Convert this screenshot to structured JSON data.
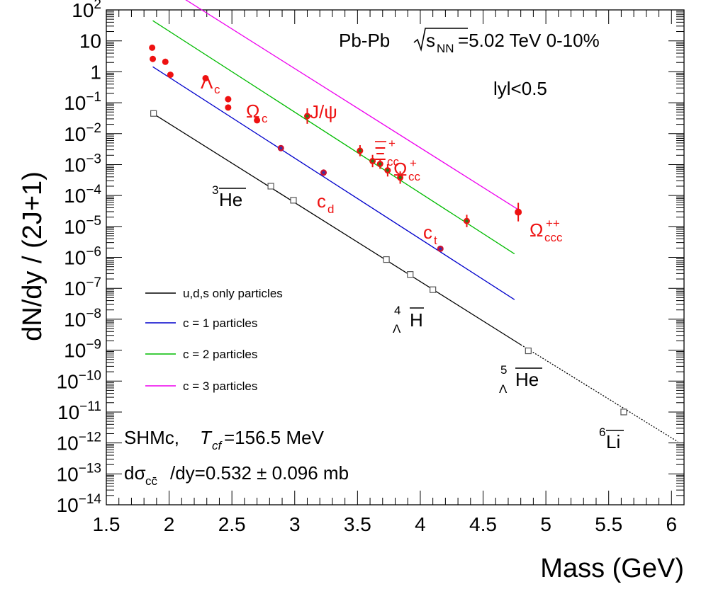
{
  "chart_data": {
    "type": "scatter",
    "xlabel": "Mass (GeV)",
    "ylabel": "dN/dy / (2J+1)",
    "xlim": [
      1.5,
      6.1
    ],
    "ylim_log10": [
      -14,
      2
    ],
    "y_scale": "log",
    "x_ticks": [
      {
        "v": 1.5,
        "t": "1.5"
      },
      {
        "v": 2,
        "t": "2"
      },
      {
        "v": 2.5,
        "t": "2.5"
      },
      {
        "v": 3,
        "t": "3"
      },
      {
        "v": 3.5,
        "t": "3.5"
      },
      {
        "v": 4,
        "t": "4"
      },
      {
        "v": 4.5,
        "t": "4.5"
      },
      {
        "v": 5,
        "t": "5"
      },
      {
        "v": 5.5,
        "t": "5.5"
      },
      {
        "v": 6,
        "t": "6"
      }
    ],
    "y_ticks": [
      {
        "e": 2,
        "t": "10",
        "sup": "2"
      },
      {
        "e": 1,
        "t": "10",
        "sup": ""
      },
      {
        "e": 0,
        "t": "1",
        "sup": ""
      },
      {
        "e": -1,
        "t": "10",
        "sup": "−1"
      },
      {
        "e": -2,
        "t": "10",
        "sup": "−2"
      },
      {
        "e": -3,
        "t": "10",
        "sup": "−3"
      },
      {
        "e": -4,
        "t": "10",
        "sup": "−4"
      },
      {
        "e": -5,
        "t": "10",
        "sup": "−5"
      },
      {
        "e": -6,
        "t": "10",
        "sup": "−6"
      },
      {
        "e": -7,
        "t": "10",
        "sup": "−7"
      },
      {
        "e": -8,
        "t": "10",
        "sup": "−8"
      },
      {
        "e": -9,
        "t": "10",
        "sup": "−9"
      },
      {
        "e": -10,
        "t": "10",
        "sup": "−10"
      },
      {
        "e": -11,
        "t": "10",
        "sup": "−11"
      },
      {
        "e": -12,
        "t": "10",
        "sup": "−12"
      },
      {
        "e": -13,
        "t": "10",
        "sup": "−13"
      },
      {
        "e": -14,
        "t": "10",
        "sup": "−14"
      }
    ],
    "lines": [
      {
        "name": "u,d,s only particles",
        "color": "#000000",
        "x": [
          1.87,
          4.8
        ],
        "y": [
          0.045,
          1.5e-09
        ]
      },
      {
        "name": "u,d,s only particles",
        "color": "#000000",
        "dashed": true,
        "x": [
          4.8,
          6.05
        ],
        "y": [
          1.5e-09,
          1.1e-12
        ]
      },
      {
        "name": "c = 1 particles",
        "color": "#0000cc",
        "x": [
          1.87,
          4.75
        ],
        "y": [
          1.45,
          4.3e-08
        ]
      },
      {
        "name": "c = 2 particles",
        "color": "#00bb00",
        "x": [
          1.87,
          4.75
        ],
        "y": [
          45,
          1.3e-06
        ]
      },
      {
        "name": "c = 3 particles",
        "color": "#ee00ee",
        "x": [
          1.87,
          4.78
        ],
        "y": [
          1000,
          3.5e-05
        ]
      }
    ],
    "red_points": [
      {
        "x": 1.865,
        "y": 6.0
      },
      {
        "x": 1.87,
        "y": 2.6
      },
      {
        "x": 1.97,
        "y": 2.1
      },
      {
        "x": 2.01,
        "y": 0.8
      },
      {
        "x": 2.29,
        "y": 0.62
      },
      {
        "x": 2.47,
        "y": 0.13
      },
      {
        "x": 2.47,
        "y": 0.07
      },
      {
        "x": 2.7,
        "y": 0.027
      }
    ],
    "green_points": [
      {
        "x": 3.1,
        "y": 0.037,
        "e": 0.25
      },
      {
        "x": 3.52,
        "y": 0.0028,
        "e": 0.18
      },
      {
        "x": 3.62,
        "y": 0.0013,
        "e": 0.2
      },
      {
        "x": 3.68,
        "y": 0.00105,
        "e": 0.16
      },
      {
        "x": 3.74,
        "y": 0.00065,
        "e": 0.2
      },
      {
        "x": 3.84,
        "y": 0.00038,
        "e": 0.2
      },
      {
        "x": 4.37,
        "y": 1.5e-05,
        "e": 0.2
      }
    ],
    "magenta_points": [
      {
        "x": 4.78,
        "y": 2.9e-05,
        "e": 0.3
      }
    ],
    "blue_points": [
      {
        "x": 2.89,
        "y": 0.0034
      },
      {
        "x": 3.23,
        "y": 0.00055
      },
      {
        "x": 4.16,
        "y": 1.9e-06
      }
    ],
    "nuclei_points": [
      {
        "x": 1.876,
        "y": 0.045
      },
      {
        "x": 2.81,
        "y": 0.0002
      },
      {
        "x": 2.99,
        "y": 7e-05
      },
      {
        "x": 3.73,
        "y": 8.5e-07
      },
      {
        "x": 3.92,
        "y": 2.8e-07
      },
      {
        "x": 4.1,
        "y": 9e-08
      },
      {
        "x": 4.86,
        "y": 9.5e-10
      },
      {
        "x": 5.62,
        "y": 1e-11
      }
    ],
    "legend": [
      {
        "label": "u,d,s only particles",
        "color": "#000000"
      },
      {
        "label": "c = 1 particles",
        "color": "#0000cc"
      },
      {
        "label": "c = 2 particles",
        "color": "#00bb00"
      },
      {
        "label": "c = 3 particles",
        "color": "#ee00ee"
      }
    ],
    "annotations": {
      "system": "Pb-Pb",
      "energy": "=5.02 TeV 0-10%",
      "sqrt_s": "s",
      "sqrt_s_sub": "NN",
      "rapidity": "lyl<0.5",
      "model": "SHMc,",
      "tcf_symbol": "T",
      "tcf_sub": "cf",
      "tcf_value": "=156.5 MeV",
      "xsec_prefix": "dσ",
      "xsec_sub": "cc̄",
      "xsec_value": "/dy=0.532 ± 0.096 mb",
      "Lambda_c": "Λ",
      "Lambda_c_sub": "c",
      "Omega_c": "Ω",
      "Omega_c_sub": "c",
      "Jpsi": "J/ψ",
      "Xi_cc": "Ξ",
      "Xi_cc_sub": "cc",
      "Xi_cc_sup": "+",
      "Omega_cc": "Ω",
      "Omega_cc_sub": "cc",
      "Omega_cc_sup": "+",
      "Omega_ccc": "Ω",
      "Omega_ccc_sub": "ccc",
      "Omega_ccc_sup": "++",
      "c_d": "c",
      "c_d_sub": "d",
      "c_t": "c",
      "c_t_sub": "t",
      "He3_sup": "3",
      "He3": "He",
      "H4L_sup": "4",
      "H4L_sub": "Λ",
      "H4L": "H",
      "He5L_sup": "5",
      "He5L_sub": "Λ",
      "He5L": "He",
      "Li6_sup": "6",
      "Li6": "Li"
    },
    "colors": {
      "red": "#ee1111",
      "green_marker": "#2a7a1a"
    }
  }
}
